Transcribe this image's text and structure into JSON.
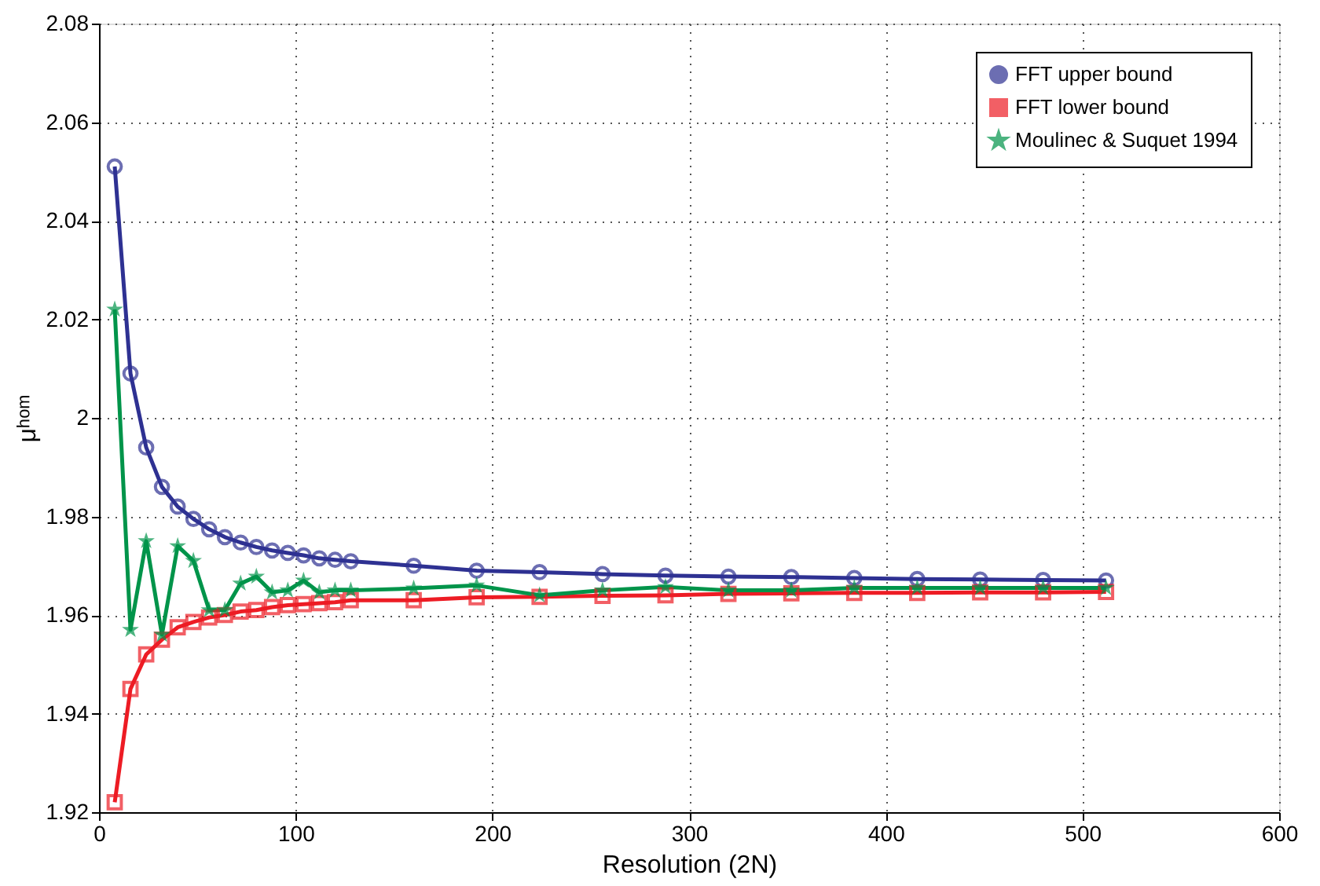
{
  "chart_data": {
    "type": "line",
    "xlabel": "Resolution (2N)",
    "ylabel": "μʰᵒᵐ",
    "x": [
      8,
      16,
      24,
      32,
      40,
      48,
      56,
      64,
      72,
      80,
      88,
      96,
      104,
      112,
      120,
      128,
      160,
      192,
      224,
      256,
      288,
      320,
      352,
      384,
      416,
      448,
      480,
      512
    ],
    "series": [
      {
        "name": "FFT upper bound",
        "color": "#2e3192",
        "marker": "circle",
        "values": [
          2.051,
          2.009,
          1.994,
          1.986,
          1.982,
          1.9795,
          1.9774,
          1.9758,
          1.9747,
          1.9738,
          1.9731,
          1.9726,
          1.9721,
          1.9715,
          1.9712,
          1.9709,
          1.97,
          1.969,
          1.9687,
          1.9683,
          1.968,
          1.9678,
          1.9677,
          1.9675,
          1.9673,
          1.9672,
          1.9671,
          1.967
        ]
      },
      {
        "name": "FFT lower bound",
        "color": "#ed1c24",
        "marker": "square",
        "values": [
          1.922,
          1.945,
          1.952,
          1.955,
          1.9575,
          1.9586,
          1.9595,
          1.96,
          1.9607,
          1.961,
          1.9616,
          1.962,
          1.9622,
          1.9624,
          1.9626,
          1.963,
          1.963,
          1.9636,
          1.9637,
          1.9639,
          1.964,
          1.9643,
          1.9644,
          1.9645,
          1.9645,
          1.9646,
          1.9646,
          1.9647
        ]
      },
      {
        "name": "Moulinec & Suquet 1994",
        "color": "#00944a",
        "marker": "star",
        "values": [
          2.022,
          1.957,
          1.975,
          1.956,
          1.974,
          1.971,
          1.961,
          1.961,
          1.9664,
          1.9678,
          1.9646,
          1.965,
          1.967,
          1.9646,
          1.965,
          1.965,
          1.9654,
          1.966,
          1.964,
          1.965,
          1.9657,
          1.965,
          1.965,
          1.9655,
          1.9655,
          1.9655,
          1.9655,
          1.9655
        ]
      }
    ],
    "xlim": [
      0,
      600
    ],
    "xticks": [
      0,
      100,
      200,
      300,
      400,
      500,
      600
    ],
    "ylim": [
      1.92,
      2.08
    ],
    "yticks": [
      1.92,
      1.94,
      1.96,
      1.98,
      2,
      2.02,
      2.04,
      2.06,
      2.08
    ],
    "grid": true,
    "legend": "top right",
    "line_style": "solid"
  }
}
